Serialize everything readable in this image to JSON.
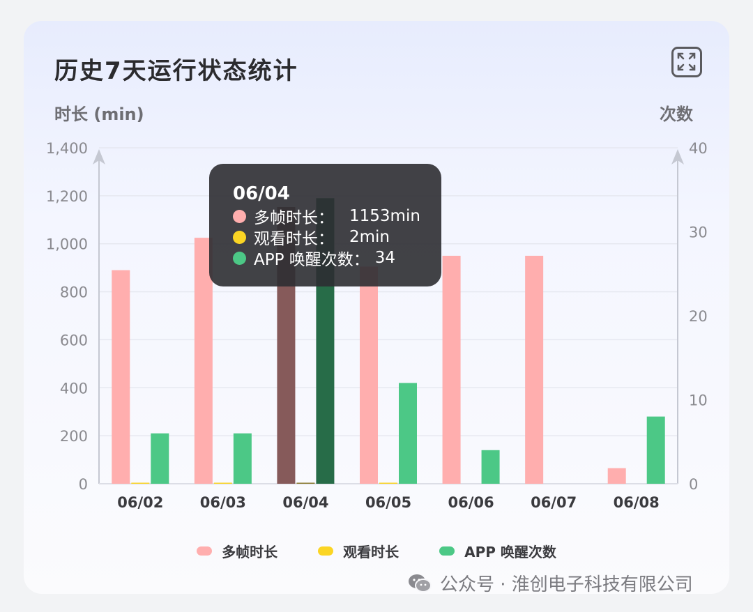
{
  "header": {
    "title": "历史7天运行状态统计",
    "expand_icon": "expand-icon"
  },
  "axes": {
    "left_unit": "时长 (min)",
    "right_unit": "次数"
  },
  "colors": {
    "multi_frame": "#ffaeae",
    "watch": "#fbd524",
    "wake": "#4cc886"
  },
  "chart_data": {
    "type": "bar",
    "categories": [
      "06/02",
      "06/03",
      "06/04",
      "06/05",
      "06/06",
      "06/07",
      "06/08"
    ],
    "series": [
      {
        "name": "多帧时长",
        "axis": "left",
        "values": [
          890,
          1025,
          1153,
          905,
          950,
          950,
          65
        ]
      },
      {
        "name": "观看时长",
        "axis": "left",
        "values": [
          1,
          1,
          2,
          1,
          0,
          0,
          0
        ]
      },
      {
        "name": "APP 唤醒次数",
        "axis": "right",
        "values": [
          6,
          6,
          34,
          12,
          4,
          0,
          8
        ]
      }
    ],
    "y_left": {
      "ylim": [
        0,
        1400
      ],
      "ticks": [
        "0",
        "200",
        "400",
        "600",
        "800",
        "1,000",
        "1,200",
        "1,400"
      ]
    },
    "y_right": {
      "ylim": [
        0,
        40
      ],
      "ticks": [
        "0",
        "10",
        "20",
        "30",
        "40"
      ]
    },
    "highlighted_category": "06/04",
    "legend_position": "bottom"
  },
  "tooltip": {
    "date": "06/04",
    "rows": [
      {
        "label": "多帧时长：",
        "value": "1153min"
      },
      {
        "label": "观看时长：",
        "value": "2min"
      },
      {
        "label": "APP 唤醒次数：",
        "value": "34"
      }
    ]
  },
  "legend": {
    "items": [
      "多帧时长",
      "观看时长",
      "APP 唤醒次数"
    ]
  },
  "watermark": {
    "text": "公众号 · 淮创电子科技有限公司",
    "icon": "wechat-icon"
  }
}
